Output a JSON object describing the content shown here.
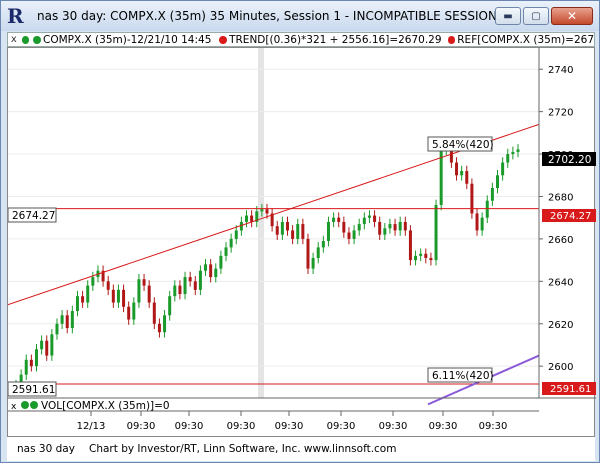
{
  "window": {
    "app_icon": "R",
    "title": "nas 30 day: COMPX.X (35m) 35 Minutes, Session 1 - INCOMPATIBLE SESSION!",
    "buttons": {
      "minimize": "minimize-icon",
      "maximize": "maximize-icon",
      "close": "close-icon"
    }
  },
  "legend": {
    "close_glyph": "x",
    "symbol": "COMPX.X (35m)-12/21/10 14:45",
    "trend": "TREND[(0.36)*321 + 2556.16]=2670.29",
    "ref": "REF[COMPX.X (35m)=267"
  },
  "annotations": {
    "pct_top": "5.84%(420)",
    "pct_bottom": "6.11%(420)",
    "ref_left_top": "2674.27",
    "ref_left_bottom": "2591.61",
    "last_price": "2702.20",
    "ref_right_top": "2674.27",
    "ref_right_bottom": "2591.61"
  },
  "volume": {
    "label": "VOL[COMPX.X (35m)]=0"
  },
  "footer": {
    "left": "nas 30 day",
    "credit": "Chart by Investor/RT, Linn Software, Inc. www.linnsoft.com"
  },
  "colors": {
    "up": "#1a9a2a",
    "down": "#b01818",
    "trend": "#d91a1a",
    "ref": "#d91a1a",
    "volume_line": "#8a5ad8",
    "last_price_bg": "#000000",
    "ref_tag_bg": "#d91a1a"
  },
  "chart_data": {
    "type": "candlestick",
    "ylim": [
      2585,
      2750
    ],
    "y_ticks": [
      2600,
      2620,
      2640,
      2660,
      2680,
      2700,
      2720,
      2740
    ],
    "x_ticks": [
      "12/13",
      "09:30",
      "09:30",
      "09:30",
      "09:30",
      "09:30",
      "09:30",
      "09:30",
      "09:30"
    ],
    "trend_line": {
      "start": 2629,
      "end": 2714
    },
    "ref_lines": [
      2674.27,
      2591.61
    ],
    "last_price": 2702.2,
    "volume_line": {
      "start": 2582,
      "end": 2605
    },
    "closes": [
      2591,
      2596,
      2603,
      2600,
      2608,
      2612,
      2605,
      2615,
      2620,
      2624,
      2618,
      2626,
      2633,
      2630,
      2638,
      2642,
      2645,
      2640,
      2636,
      2630,
      2636,
      2628,
      2622,
      2630,
      2641,
      2638,
      2630,
      2620,
      2616,
      2624,
      2633,
      2638,
      2634,
      2642,
      2640,
      2636,
      2645,
      2648,
      2642,
      2646,
      2652,
      2656,
      2660,
      2664,
      2668,
      2671,
      2668,
      2673,
      2674,
      2672,
      2666,
      2662,
      2668,
      2664,
      2660,
      2667,
      2660,
      2646,
      2651,
      2656,
      2659,
      2668,
      2670,
      2668,
      2663,
      2660,
      2664,
      2667,
      2670,
      2671,
      2668,
      2662,
      2665,
      2667,
      2664,
      2668,
      2664,
      2650,
      2652,
      2653,
      2651,
      2650,
      2676,
      2702,
      2703,
      2696,
      2690,
      2692,
      2686,
      2672,
      2664,
      2670,
      2678,
      2684,
      2690,
      2696,
      2700,
      2701,
      2702.2
    ]
  }
}
